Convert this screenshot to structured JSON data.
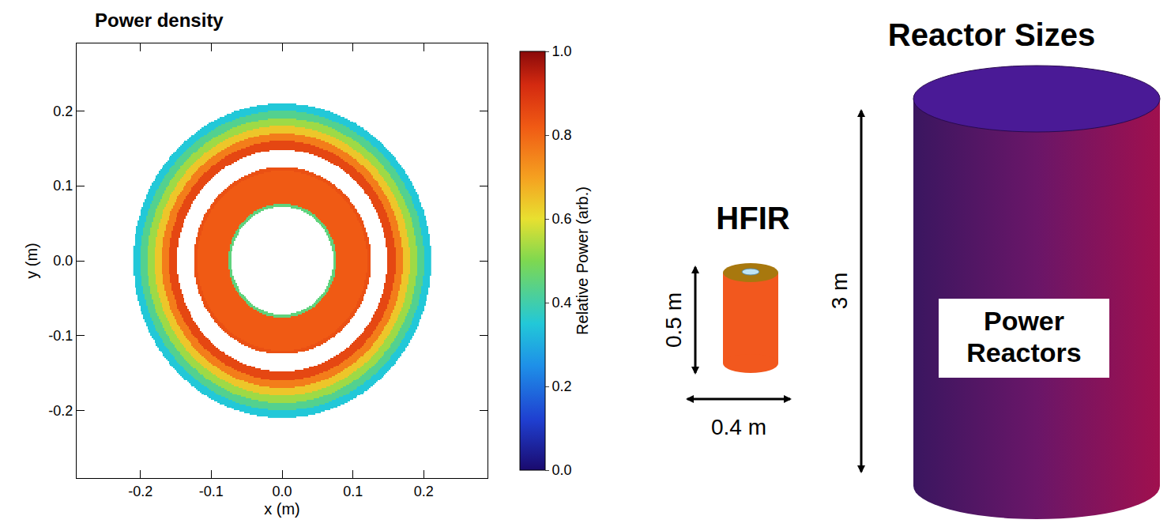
{
  "chart_data": {
    "type": "heatmap",
    "title": "Power density",
    "x_label": "x (m)",
    "y_label": "y (m)",
    "xlim": [
      -0.29,
      0.29
    ],
    "ylim": [
      -0.29,
      0.29
    ],
    "xticks": [
      -0.2,
      -0.1,
      {
        "value": 0,
        "label": "0.0"
      },
      0.1,
      0.2
    ],
    "yticks": [
      -0.2,
      -0.1,
      {
        "value": 0,
        "label": "0.0"
      },
      0.1,
      0.2
    ],
    "radial_bins": [
      0,
      0.072,
      0.076,
      0.12,
      0.125,
      0.148,
      0.16,
      0.17,
      0.18,
      0.19,
      0.2,
      0.21
    ],
    "power": [
      null,
      0.45,
      0.82,
      0.84,
      null,
      0.86,
      0.76,
      0.64,
      0.53,
      0.43,
      0.35
    ],
    "colorbar": {
      "title": "Relative Power (arb.)",
      "range": [
        0,
        1
      ],
      "ticks": [
        {
          "value": 0,
          "label": "0.0"
        },
        0.2,
        0.4,
        0.6,
        0.8,
        {
          "value": 1,
          "label": "1.0"
        }
      ]
    }
  },
  "diagram": {
    "title": "Reactor Sizes",
    "reactors": [
      {
        "label": "HFIR",
        "height_label": "0.5 m",
        "width_label": "0.4 m"
      },
      {
        "label": "Power Reactors",
        "height_label": "3 m"
      }
    ]
  }
}
